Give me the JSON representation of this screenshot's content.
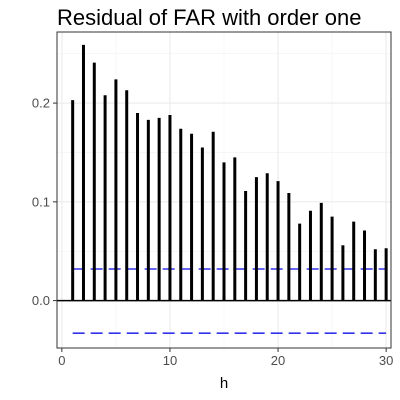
{
  "chart_data": {
    "type": "bar",
    "title": "Residual of FAR with order one",
    "xlabel": "h",
    "ylabel": "",
    "x": [
      1,
      2,
      3,
      4,
      5,
      6,
      7,
      8,
      9,
      10,
      11,
      12,
      13,
      14,
      15,
      16,
      17,
      18,
      19,
      20,
      21,
      22,
      23,
      24,
      25,
      26,
      27,
      28,
      29,
      30
    ],
    "values": [
      0.203,
      0.259,
      0.241,
      0.208,
      0.224,
      0.213,
      0.19,
      0.183,
      0.185,
      0.188,
      0.174,
      0.169,
      0.155,
      0.171,
      0.14,
      0.145,
      0.111,
      0.125,
      0.129,
      0.121,
      0.109,
      0.078,
      0.091,
      0.099,
      0.085,
      0.056,
      0.08,
      0.071,
      0.052,
      0.053
    ],
    "xlim": [
      -0.45,
      30.45
    ],
    "ylim": [
      -0.048,
      0.272
    ],
    "xticks": [
      0,
      10,
      20,
      30
    ],
    "xtick_labels": [
      "0",
      "10",
      "20",
      "30"
    ],
    "yticks": [
      0.0,
      0.1,
      0.2
    ],
    "ytick_labels": [
      "0.0",
      "0.1",
      "0.2"
    ],
    "hlines": [
      {
        "y": 0.032,
        "style": "dashed",
        "color": "#3333ee"
      },
      {
        "y": -0.033,
        "style": "dashed",
        "color": "#3333ee"
      },
      {
        "y": 0.0,
        "style": "solid",
        "color": "#000000"
      }
    ],
    "grid": true,
    "theme": "bw",
    "bar_color": "#000000"
  }
}
